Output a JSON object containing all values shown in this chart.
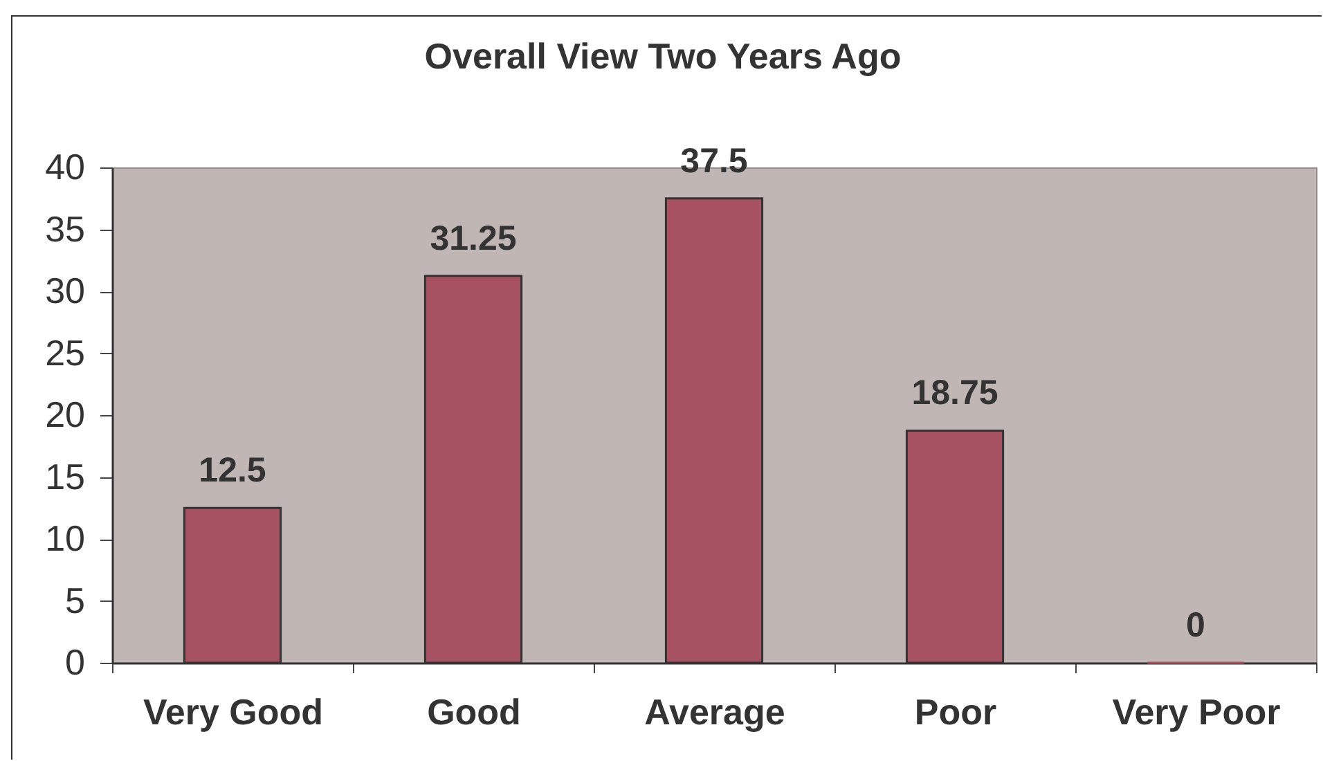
{
  "chart_data": {
    "type": "bar",
    "title": "Overall View Two Years Ago",
    "categories": [
      "Very Good",
      "Good",
      "Average",
      "Poor",
      "Very Poor"
    ],
    "values": [
      12.5,
      31.25,
      37.5,
      18.75,
      0
    ],
    "color": "#a65262",
    "ylim": [
      0,
      40
    ],
    "yticks": [
      0,
      5,
      10,
      15,
      20,
      25,
      30,
      35,
      40
    ],
    "data_labels": true
  }
}
